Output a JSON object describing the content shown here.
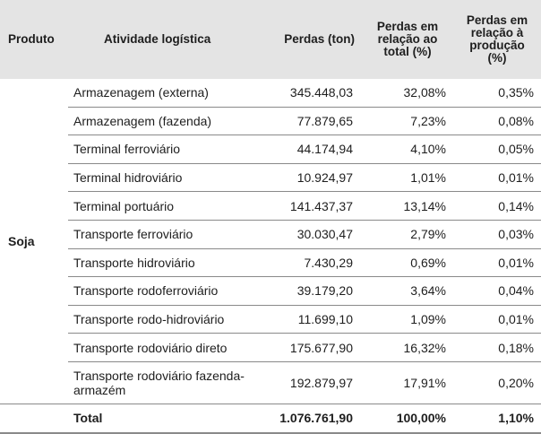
{
  "headers": {
    "produto": "Produto",
    "atividade": "Atividade logística",
    "perdas": "Perdas (ton)",
    "perdas_total": "Perdas em relação ao total (%)",
    "perdas_producao": "Perdas em relação à produção (%)"
  },
  "product": "Soja",
  "rows": [
    {
      "atividade": "Armazenagem (externa)",
      "perdas": "345.448,03",
      "total": "32,08%",
      "producao": "0,35%"
    },
    {
      "atividade": "Armazenagem (fazenda)",
      "perdas": "77.879,65",
      "total": "7,23%",
      "producao": "0,08%"
    },
    {
      "atividade": "Terminal ferroviário",
      "perdas": "44.174,94",
      "total": "4,10%",
      "producao": "0,05%"
    },
    {
      "atividade": "Terminal hidroviário",
      "perdas": "10.924,97",
      "total": "1,01%",
      "producao": "0,01%"
    },
    {
      "atividade": "Terminal portuário",
      "perdas": "141.437,37",
      "total": "13,14%",
      "producao": "0,14%"
    },
    {
      "atividade": "Transporte ferroviário",
      "perdas": "30.030,47",
      "total": "2,79%",
      "producao": "0,03%"
    },
    {
      "atividade": "Transporte hidroviário",
      "perdas": "7.430,29",
      "total": "0,69%",
      "producao": "0,01%"
    },
    {
      "atividade": "Transporte rodoferroviário",
      "perdas": "39.179,20",
      "total": "3,64%",
      "producao": "0,04%"
    },
    {
      "atividade": "Transporte rodo-hidroviário",
      "perdas": "11.699,10",
      "total": "1,09%",
      "producao": "0,01%"
    },
    {
      "atividade": "Transporte rodoviário direto",
      "perdas": "175.677,90",
      "total": "16,32%",
      "producao": "0,18%"
    },
    {
      "atividade": "Transporte rodoviário fazenda-armazém",
      "perdas": "192.879,97",
      "total": "17,91%",
      "producao": "0,20%"
    }
  ],
  "total": {
    "label": "Total",
    "perdas": "1.076.761,90",
    "total": "100,00%",
    "producao": "1,10%"
  }
}
